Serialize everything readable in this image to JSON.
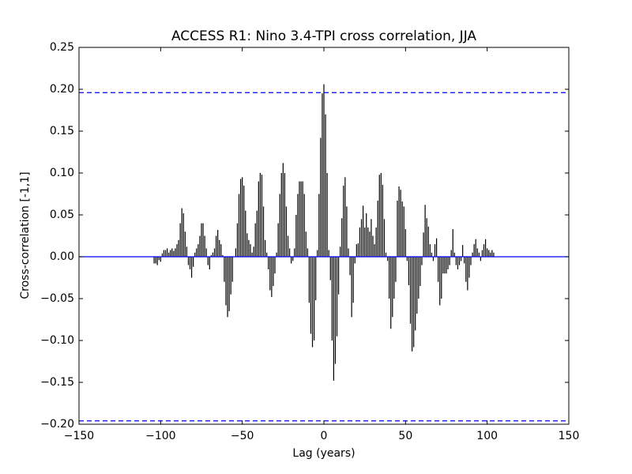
{
  "chart_data": {
    "type": "xcorr",
    "title": "ACCESS R1: Nino 3.4-TPI cross correlation, JJA",
    "xlabel": "Lag (years)",
    "ylabel": "Cross-correlation [-1,1]",
    "xlim": [
      -150,
      150
    ],
    "ylim": [
      -0.2,
      0.25
    ],
    "xticks": [
      {
        "value": -150,
        "label": "−150"
      },
      {
        "value": -100,
        "label": "−100"
      },
      {
        "value": -50,
        "label": "−50"
      },
      0,
      50,
      100,
      150
    ],
    "yticks": [
      {
        "value": -0.2,
        "label": "−0.20"
      },
      {
        "value": -0.15,
        "label": "−0.15"
      },
      {
        "value": -0.1,
        "label": "−0.10"
      },
      {
        "value": -0.05,
        "label": "−0.05"
      },
      {
        "value": 0,
        "label": "0.00"
      },
      {
        "value": 0.05,
        "label": "0.05"
      },
      {
        "value": 0.1,
        "label": "0.10"
      },
      {
        "value": 0.15,
        "label": "0.15"
      },
      {
        "value": 0.2,
        "label": "0.20"
      },
      {
        "value": 0.25,
        "label": "0.25"
      }
    ],
    "color": "#000000",
    "line_color": "#0000ff",
    "zero_line": 0,
    "confidence_lines": [
      0.196,
      -0.196
    ],
    "x": [
      -104,
      -103,
      -102,
      -101,
      -100,
      -99,
      -98,
      -97,
      -96,
      -95,
      -94,
      -93,
      -92,
      -91,
      -90,
      -89,
      -88,
      -87,
      -86,
      -85,
      -84,
      -83,
      -82,
      -81,
      -80,
      -79,
      -78,
      -77,
      -76,
      -75,
      -74,
      -73,
      -72,
      -71,
      -70,
      -69,
      -68,
      -67,
      -66,
      -65,
      -64,
      -63,
      -62,
      -61,
      -60,
      -59,
      -58,
      -57,
      -56,
      -55,
      -54,
      -53,
      -52,
      -51,
      -50,
      -49,
      -48,
      -47,
      -46,
      -45,
      -44,
      -43,
      -42,
      -41,
      -40,
      -39,
      -38,
      -37,
      -36,
      -35,
      -34,
      -33,
      -32,
      -31,
      -30,
      -29,
      -28,
      -27,
      -26,
      -25,
      -24,
      -23,
      -22,
      -21,
      -20,
      -19,
      -18,
      -17,
      -16,
      -15,
      -14,
      -13,
      -12,
      -11,
      -10,
      -9,
      -8,
      -7,
      -6,
      -5,
      -4,
      -3,
      -2,
      -1,
      0,
      1,
      2,
      3,
      4,
      5,
      6,
      7,
      8,
      9,
      10,
      11,
      12,
      13,
      14,
      15,
      16,
      17,
      18,
      19,
      20,
      21,
      22,
      23,
      24,
      25,
      26,
      27,
      28,
      29,
      30,
      31,
      32,
      33,
      34,
      35,
      36,
      37,
      38,
      39,
      40,
      41,
      42,
      43,
      44,
      45,
      46,
      47,
      48,
      49,
      50,
      51,
      52,
      53,
      54,
      55,
      56,
      57,
      58,
      59,
      60,
      61,
      62,
      63,
      64,
      65,
      66,
      67,
      68,
      69,
      70,
      71,
      72,
      73,
      74,
      75,
      76,
      77,
      78,
      79,
      80,
      81,
      82,
      83,
      84,
      85,
      86,
      87,
      88,
      89,
      90,
      91,
      92,
      93,
      94,
      95,
      96,
      97,
      98,
      99,
      100,
      101,
      102,
      103,
      104
    ],
    "values": [
      -0.008,
      -0.008,
      -0.01,
      -0.004,
      -0.006,
      0.004,
      0.008,
      0.008,
      0.01,
      0.005,
      0.008,
      0.01,
      0.007,
      0.01,
      0.015,
      0.02,
      0.04,
      0.058,
      0.052,
      0.03,
      0.012,
      -0.01,
      -0.015,
      -0.025,
      -0.012,
      0.005,
      0.01,
      0.015,
      0.025,
      0.04,
      0.04,
      0.025,
      0.01,
      -0.01,
      -0.015,
      0.002,
      0.005,
      0.01,
      0.025,
      0.032,
      0.02,
      0.015,
      0.002,
      -0.03,
      -0.058,
      -0.072,
      -0.065,
      -0.045,
      -0.03,
      0.0,
      0.01,
      0.04,
      0.075,
      0.093,
      0.095,
      0.085,
      0.055,
      0.028,
      0.02,
      0.015,
      0.005,
      0.012,
      0.04,
      0.055,
      0.09,
      0.1,
      0.098,
      0.06,
      0.02,
      0.005,
      -0.015,
      -0.04,
      -0.048,
      -0.035,
      -0.02,
      0.005,
      0.04,
      0.075,
      0.1,
      0.112,
      0.1,
      0.06,
      0.025,
      0.01,
      -0.008,
      -0.005,
      0.01,
      0.05,
      0.075,
      0.09,
      0.09,
      0.09,
      0.075,
      0.03,
      0.01,
      -0.055,
      -0.092,
      -0.108,
      -0.1,
      -0.052,
      0.008,
      0.075,
      0.142,
      0.195,
      0.206,
      0.17,
      0.1,
      0.008,
      -0.028,
      -0.1,
      -0.148,
      -0.128,
      -0.095,
      -0.045,
      0.012,
      0.046,
      0.085,
      0.095,
      0.06,
      0.01,
      -0.022,
      -0.072,
      -0.055,
      -0.008,
      0.015,
      0.016,
      0.035,
      0.045,
      0.061,
      0.035,
      0.052,
      0.035,
      0.03,
      0.045,
      0.025,
      0.015,
      0.035,
      0.067,
      0.098,
      0.1,
      0.086,
      0.045,
      0.005,
      -0.005,
      -0.05,
      -0.086,
      -0.072,
      -0.05,
      -0.03,
      0.067,
      0.084,
      0.08,
      0.066,
      0.06,
      0.033,
      -0.005,
      -0.034,
      -0.08,
      -0.113,
      -0.108,
      -0.088,
      -0.068,
      -0.05,
      -0.035,
      -0.01,
      0.029,
      0.062,
      0.046,
      0.036,
      0.015,
      0.005,
      -0.005,
      0.015,
      0.022,
      -0.03,
      -0.058,
      -0.05,
      -0.02,
      -0.02,
      -0.02,
      -0.015,
      -0.01,
      0.008,
      0.033,
      0.005,
      -0.01,
      -0.015,
      -0.01,
      -0.005,
      0.014,
      -0.008,
      -0.03,
      -0.04,
      -0.025,
      -0.01,
      0.005,
      0.015,
      0.021,
      0.01,
      0.005,
      -0.005,
      0.008,
      0.015,
      0.021,
      0.01,
      0.008,
      0.005,
      0.008,
      0.005
    ]
  }
}
